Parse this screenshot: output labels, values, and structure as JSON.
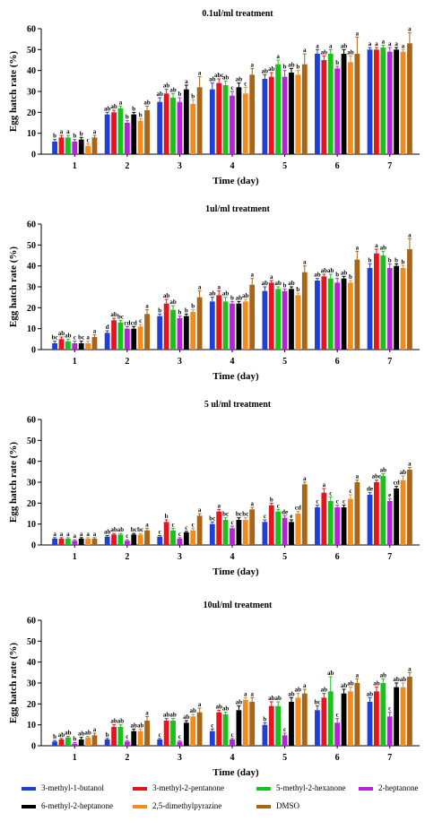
{
  "colors": {
    "3-methyl-1-butanol": "#1f3fd6",
    "3-methyl-2-pentanone": "#e8141c",
    "5-methyl-2-hexanone": "#19c219",
    "2-heptanone": "#b424d6",
    "6-methyl-2-heptanone": "#000000",
    "2,5-dimethylpyrazine": "#f28a1c",
    "DMSO": "#a86417"
  },
  "legend": {
    "items": [
      {
        "name": "3-methyl-1-butanol",
        "color": "#1f3fd6"
      },
      {
        "name": "3-methyl-2-pentanone",
        "color": "#e8141c"
      },
      {
        "name": "5-methyl-2-hexanone",
        "color": "#19c219"
      },
      {
        "name": "2-heptanone",
        "color": "#b424d6"
      },
      {
        "name": "6-methyl-2-heptanone",
        "color": "#000000"
      },
      {
        "name": "2,5-dimethylpyrazine",
        "color": "#f28a1c"
      },
      {
        "name": "DMSO",
        "color": "#a86417"
      }
    ]
  },
  "chart_data": [
    {
      "type": "bar",
      "title": "0.1ul/ml treatment",
      "xlabel": "Time (day)",
      "ylabel": "Egg hatch rate (%)",
      "ylim": [
        0,
        60
      ],
      "yticks": [
        0,
        10,
        20,
        30,
        40,
        50,
        60
      ],
      "categories": [
        "1",
        "2",
        "3",
        "4",
        "5",
        "6",
        "7"
      ],
      "series": [
        {
          "name": "3-methyl-1-butanol",
          "values": [
            6,
            19,
            25,
            31,
            36,
            48,
            50
          ],
          "errors": [
            1,
            1,
            2,
            3,
            2,
            2,
            1
          ],
          "labels": [
            "b",
            "ab",
            "ab",
            "ab",
            "ab",
            "a",
            "a"
          ]
        },
        {
          "name": "3-methyl-2-pentanone",
          "values": [
            8,
            20,
            29,
            34,
            37,
            45,
            50
          ],
          "errors": [
            1,
            1,
            2,
            2,
            2,
            2,
            1
          ],
          "labels": [
            "a",
            "ab",
            "ab",
            "abc",
            "ab",
            "ab",
            "a"
          ]
        },
        {
          "name": "5-methyl-2-hexanone",
          "values": [
            8,
            22,
            27,
            33,
            43,
            48,
            51
          ],
          "errors": [
            1,
            1,
            2,
            2,
            2,
            2,
            1
          ],
          "labels": [
            "a",
            "a",
            "ab",
            "ab",
            "a",
            "a",
            "a"
          ]
        },
        {
          "name": "2-heptanone",
          "values": [
            6,
            15,
            25,
            28,
            37,
            41,
            49
          ],
          "errors": [
            1,
            1,
            2,
            2,
            3,
            1,
            2
          ],
          "labels": [
            "b",
            "b",
            "b",
            "c",
            "b",
            "b",
            "a"
          ]
        },
        {
          "name": "6-methyl-2-heptanone",
          "values": [
            7,
            19,
            31,
            32,
            39,
            48,
            50
          ],
          "errors": [
            1,
            1,
            2,
            2,
            2,
            2,
            1
          ],
          "labels": [
            "b",
            "b",
            "a",
            "ab",
            "ab",
            "ab",
            "a"
          ]
        },
        {
          "name": "2,5-dimethylpyrazine",
          "values": [
            4,
            16,
            24,
            29,
            38,
            44,
            49
          ],
          "errors": [
            1,
            1,
            2,
            3,
            2,
            3,
            1
          ],
          "labels": [
            "c",
            "b",
            "b",
            "c",
            "b",
            "ab",
            "a"
          ]
        },
        {
          "name": "DMSO",
          "values": [
            8,
            21,
            32,
            38,
            43,
            48,
            53
          ],
          "errors": [
            1,
            2,
            5,
            3,
            5,
            8,
            5
          ],
          "labels": [
            "a",
            "ab",
            "a",
            "a",
            "a",
            "a",
            "a"
          ]
        }
      ]
    },
    {
      "type": "bar",
      "title": "1ul/ml treatment",
      "xlabel": "Time (day)",
      "ylabel": "Egg hatch rate (%)",
      "ylim": [
        0,
        60
      ],
      "yticks": [
        0,
        10,
        20,
        30,
        40,
        50,
        60
      ],
      "categories": [
        "1",
        "2",
        "3",
        "4",
        "5",
        "6",
        "7"
      ],
      "series": [
        {
          "name": "3-methyl-1-butanol",
          "values": [
            3,
            8,
            16,
            23,
            28,
            33,
            39
          ],
          "errors": [
            1,
            1,
            1,
            2,
            2,
            1,
            2
          ],
          "labels": [
            "bc",
            "d",
            "b",
            "ab",
            "ab",
            "ab",
            "b"
          ]
        },
        {
          "name": "3-methyl-2-pentanone",
          "values": [
            5,
            14,
            22,
            26,
            32,
            35,
            46
          ],
          "errors": [
            1,
            1,
            2,
            2,
            1,
            1,
            2
          ],
          "labels": [
            "ab",
            "ab",
            "ab",
            "a",
            "a",
            "ab",
            "a"
          ]
        },
        {
          "name": "5-methyl-2-hexanone",
          "values": [
            4,
            13,
            19,
            23,
            29,
            34,
            45
          ],
          "errors": [
            1,
            1,
            2,
            2,
            1,
            2,
            2
          ],
          "labels": [
            "ab",
            "bc",
            "ab",
            "ab",
            "ab",
            "ab",
            "ab"
          ]
        },
        {
          "name": "2-heptanone",
          "values": [
            3,
            10,
            15,
            22,
            28,
            32,
            39
          ],
          "errors": [
            1,
            1,
            1,
            1,
            1,
            2,
            2
          ],
          "labels": [
            "c",
            "cd",
            "b",
            "b",
            "b",
            "b",
            "b"
          ]
        },
        {
          "name": "6-methyl-2-heptanone",
          "values": [
            3,
            10,
            16,
            22,
            29,
            34,
            40
          ],
          "errors": [
            1,
            1,
            1,
            1,
            1,
            1,
            1
          ],
          "labels": [
            "bc",
            "cd",
            "b",
            "ab",
            "ab",
            "ab",
            "b"
          ]
        },
        {
          "name": "2,5-dimethylpyrazine",
          "values": [
            3,
            11,
            18,
            23,
            26,
            32,
            39
          ],
          "errors": [
            1,
            1,
            1,
            1,
            1,
            1,
            1
          ],
          "labels": [
            "a",
            "c",
            "b",
            "ab",
            "b",
            "b",
            "b"
          ]
        },
        {
          "name": "DMSO",
          "values": [
            6,
            17,
            25,
            31,
            37,
            43,
            48
          ],
          "errors": [
            1,
            2,
            3,
            3,
            3,
            4,
            5
          ],
          "labels": [
            "a",
            "a",
            "a",
            "a",
            "a",
            "a",
            "a"
          ]
        }
      ]
    },
    {
      "type": "bar",
      "title": "5 ul/ml treatment",
      "xlabel": "Time (day)",
      "ylabel": "Egg hatch rate (%)",
      "ylim": [
        0,
        60
      ],
      "yticks": [
        0,
        10,
        20,
        30,
        40,
        50,
        60
      ],
      "categories": [
        "1",
        "2",
        "3",
        "4",
        "5",
        "6",
        "7"
      ],
      "series": [
        {
          "name": "3-methyl-1-butanol",
          "values": [
            3,
            4,
            4,
            10,
            11,
            18,
            24
          ],
          "errors": [
            0.5,
            0.5,
            0.5,
            1,
            1,
            1,
            1
          ],
          "labels": [
            "a",
            "ab",
            "c",
            "bc",
            "c",
            "c",
            "de"
          ]
        },
        {
          "name": "3-methyl-2-pentanone",
          "values": [
            3,
            5,
            11,
            16,
            19,
            25,
            30
          ],
          "errors": [
            0.5,
            0.5,
            1,
            1,
            1,
            2,
            1
          ],
          "labels": [
            "a",
            "ab",
            "b",
            "a",
            "b",
            "a",
            "abc"
          ]
        },
        {
          "name": "5-methyl-2-hexanone",
          "values": [
            3,
            5,
            7,
            12,
            16,
            21,
            33
          ],
          "errors": [
            0.5,
            0.5,
            1,
            1,
            1,
            2,
            1
          ],
          "labels": [
            "a",
            "ab",
            "c",
            "bc",
            "c",
            "c",
            "ab"
          ]
        },
        {
          "name": "2-heptanone",
          "values": [
            2,
            2,
            3,
            8,
            13,
            18,
            21
          ],
          "errors": [
            0.5,
            0.5,
            0.5,
            1,
            1,
            1,
            1
          ],
          "labels": [
            "a",
            "c",
            "c",
            "c",
            "de",
            "c",
            "e"
          ]
        },
        {
          "name": "6-methyl-2-heptanone",
          "values": [
            3,
            5,
            6,
            12,
            11,
            18,
            27
          ],
          "errors": [
            0.5,
            0.5,
            0.5,
            1,
            1,
            1,
            1
          ],
          "labels": [
            "a",
            "bc",
            "c",
            "bc",
            "e",
            "c",
            "cd"
          ]
        },
        {
          "name": "2,5-dimethylpyrazine",
          "values": [
            3,
            5,
            7,
            12,
            15,
            22,
            31
          ],
          "errors": [
            0.5,
            0.5,
            1,
            1,
            1,
            2,
            2
          ],
          "labels": [
            "a",
            "bc",
            "c",
            "bc",
            "cd",
            "c",
            "ab"
          ]
        },
        {
          "name": "DMSO",
          "values": [
            3,
            7,
            14,
            17,
            29,
            30,
            36
          ],
          "errors": [
            0.5,
            1,
            1,
            1,
            1,
            1,
            1
          ],
          "labels": [
            "a",
            "a",
            "a",
            "a",
            "a",
            "a",
            "a"
          ]
        }
      ]
    },
    {
      "type": "bar",
      "title": "10ul/ml treatment",
      "xlabel": "Time (day)",
      "ylabel": "Egg hatch rate (%)",
      "ylim": [
        0,
        60
      ],
      "yticks": [
        0,
        10,
        20,
        30,
        40,
        50,
        60
      ],
      "categories": [
        "1",
        "2",
        "3",
        "4",
        "5",
        "6",
        "7"
      ],
      "series": [
        {
          "name": "3-methyl-1-butanol",
          "values": [
            2,
            3,
            3,
            7,
            10,
            17,
            21
          ],
          "errors": [
            0.5,
            0.5,
            0.5,
            1,
            1,
            2,
            2
          ],
          "labels": [
            "b",
            "b",
            "c",
            "c",
            "b",
            "bc",
            "ab"
          ]
        },
        {
          "name": "3-methyl-2-pentanone",
          "values": [
            3,
            9,
            12,
            16,
            19,
            23,
            26
          ],
          "errors": [
            0.5,
            1,
            1,
            1,
            2,
            2,
            2
          ],
          "labels": [
            "ab",
            "ab",
            "ab",
            "ab",
            "ab",
            "ab",
            "ab"
          ]
        },
        {
          "name": "5-methyl-2-hexanone",
          "values": [
            4,
            9,
            12,
            15,
            19,
            26,
            30
          ],
          "errors": [
            0.5,
            1,
            1,
            1,
            2,
            7,
            2
          ],
          "labels": [
            "ab",
            "ab",
            "ab",
            "ab",
            "ab",
            "ab",
            "ab"
          ]
        },
        {
          "name": "2-heptanone",
          "values": [
            1,
            2,
            2,
            3,
            5,
            11,
            14
          ],
          "errors": [
            0.5,
            0.5,
            0.5,
            0.5,
            1,
            2,
            2
          ],
          "labels": [
            "b",
            "c",
            "c",
            "c",
            "c",
            "c",
            "c"
          ]
        },
        {
          "name": "6-methyl-2-heptanone",
          "values": [
            3,
            7,
            11,
            17,
            21,
            25,
            28
          ],
          "errors": [
            1,
            1,
            1,
            2,
            2,
            2,
            2
          ],
          "labels": [
            "ab",
            "ab",
            "ab",
            "ab",
            "ab",
            "ab",
            "ab"
          ]
        },
        {
          "name": "2,5-dimethylpyrazine",
          "values": [
            4,
            7,
            14,
            22,
            23,
            26,
            28
          ],
          "errors": [
            0.5,
            1,
            1,
            1,
            2,
            2,
            2
          ],
          "labels": [
            "ab",
            "ab",
            "ab",
            "a",
            "ab",
            "ab",
            "ab"
          ]
        },
        {
          "name": "DMSO",
          "values": [
            5,
            12,
            16,
            21,
            25,
            30,
            33
          ],
          "errors": [
            1,
            2,
            2,
            2,
            2,
            2,
            2
          ],
          "labels": [
            "a",
            "a",
            "a",
            "a",
            "a",
            "a",
            "a"
          ]
        }
      ]
    }
  ]
}
